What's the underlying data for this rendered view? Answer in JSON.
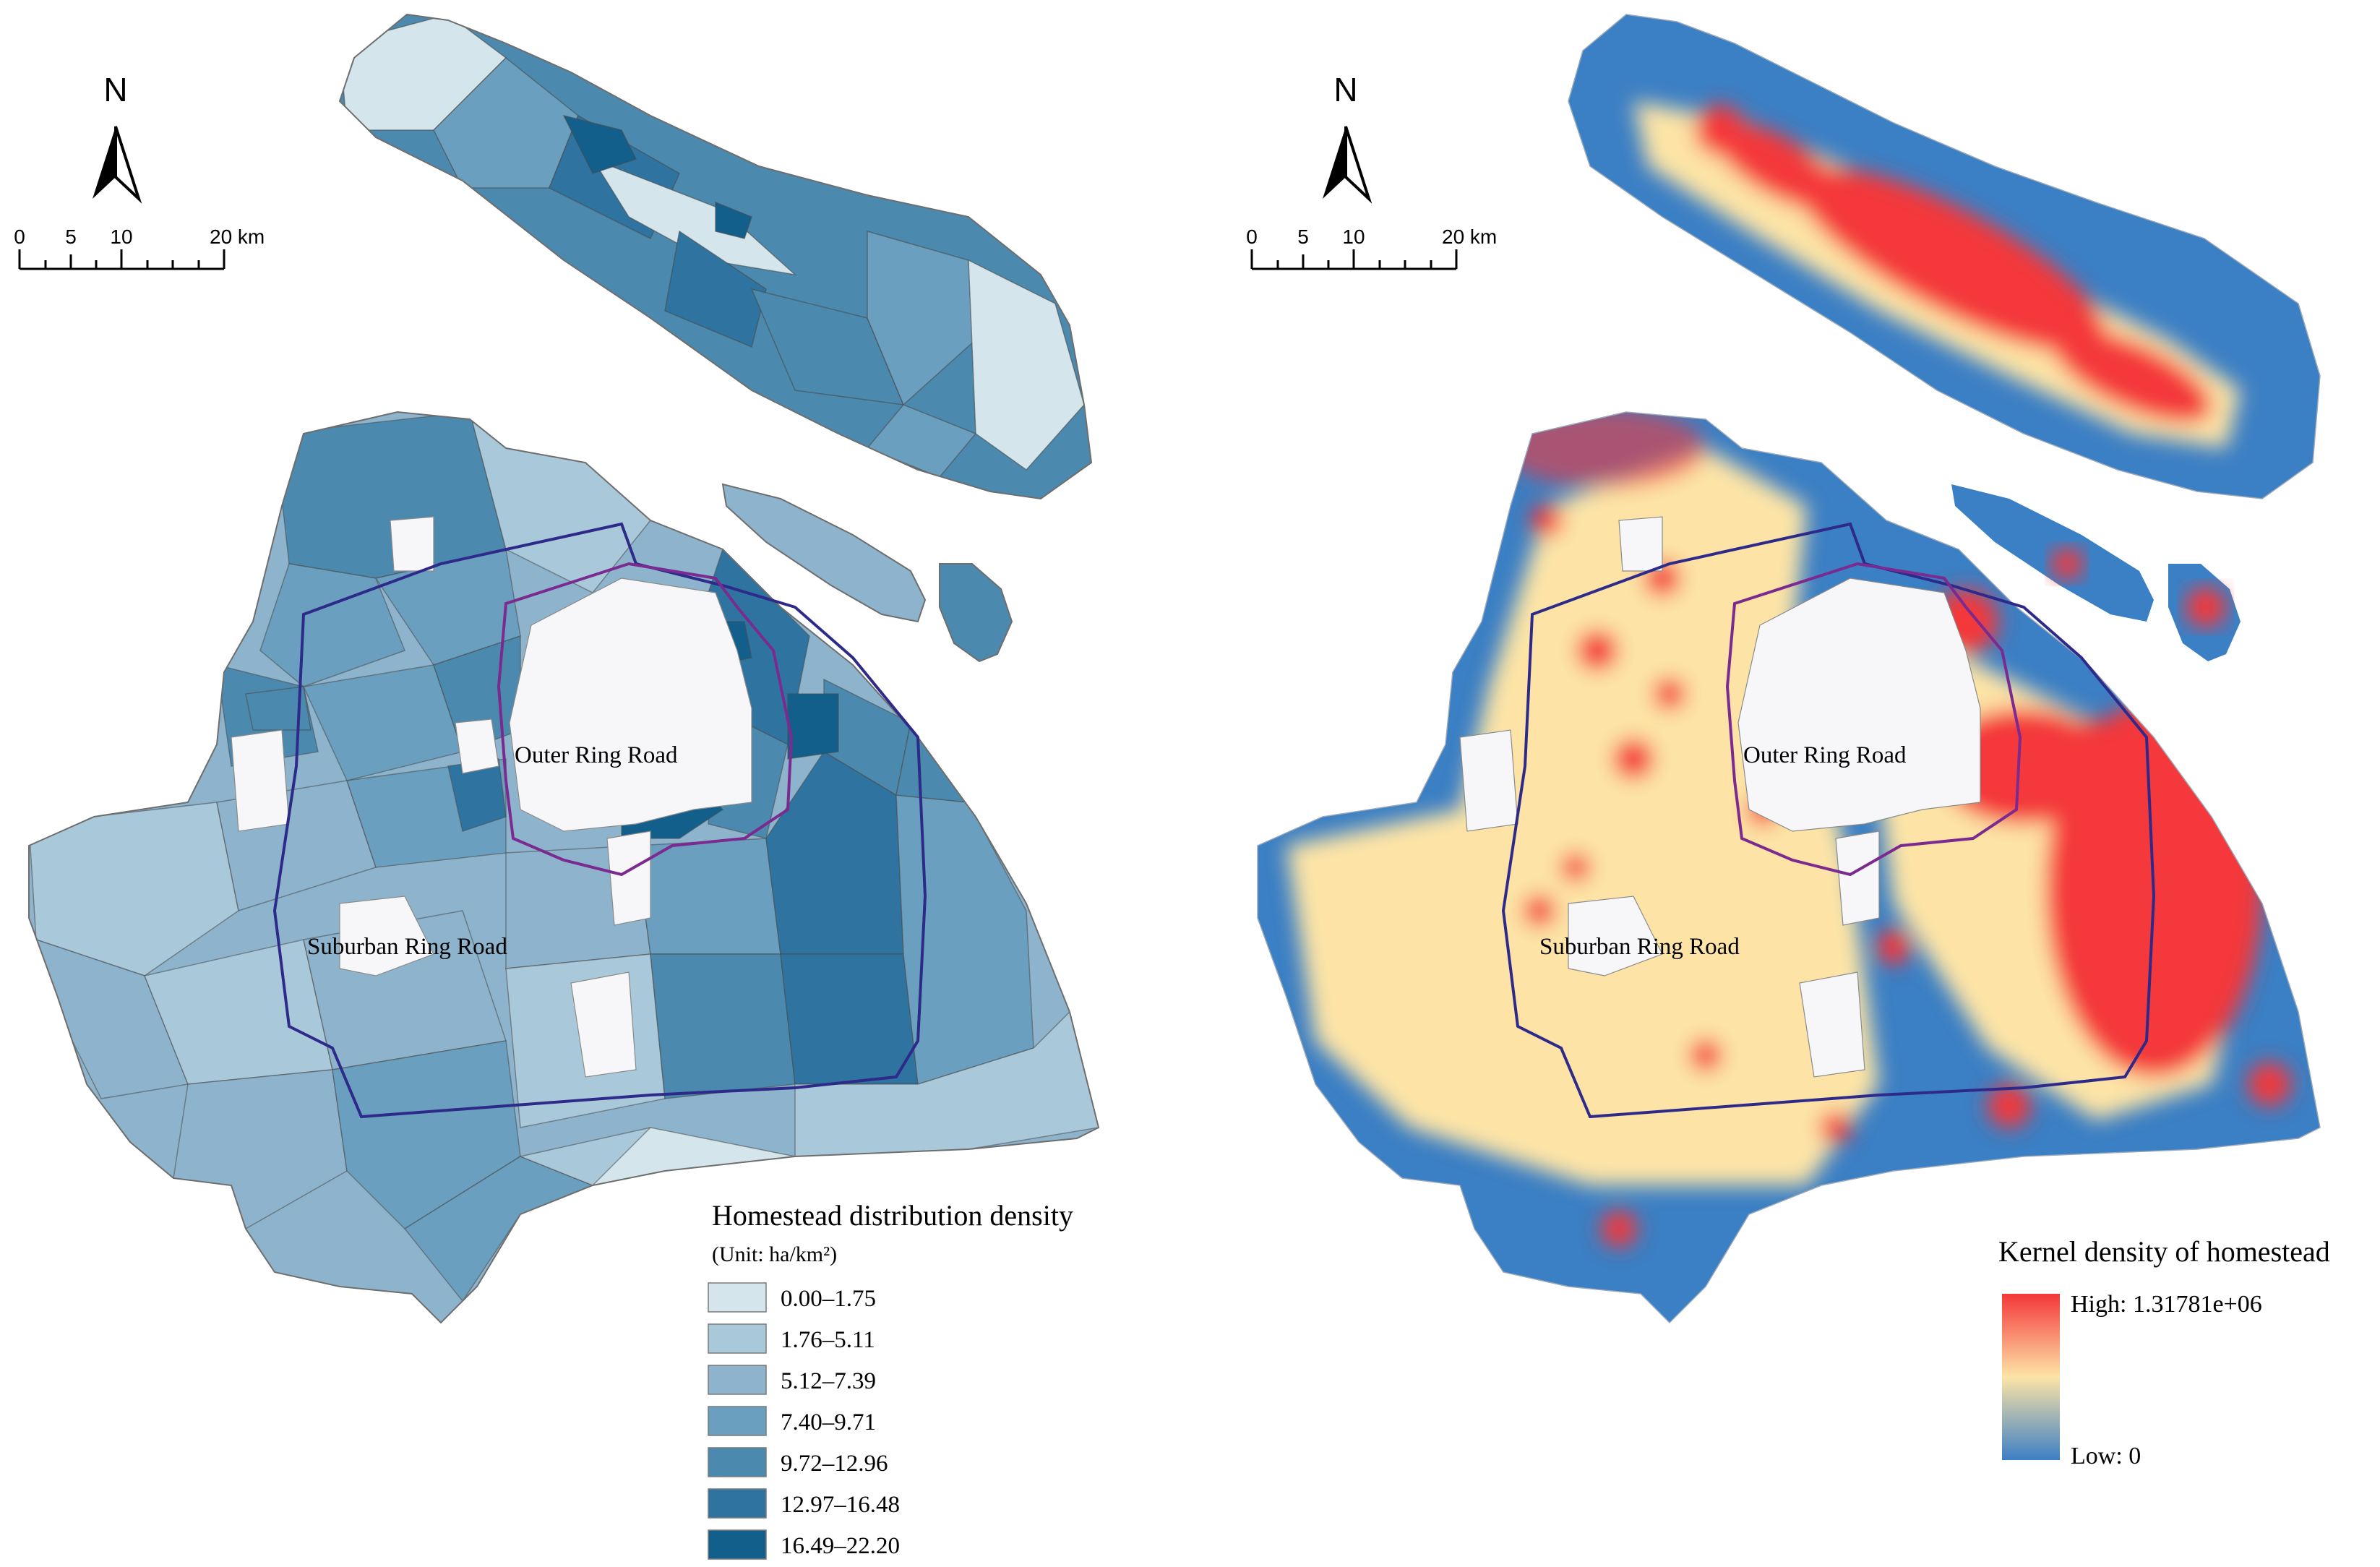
{
  "left_panel": {
    "north_label": "N",
    "scale_labels": [
      "0",
      "5",
      "10",
      "20 km"
    ],
    "ring_labels": {
      "outer": "Outer Ring Road",
      "suburban": "Suburban Ring Road"
    },
    "legend": {
      "title": "Homestead distribution density",
      "unit": "(Unit: ha/km²)",
      "classes": [
        {
          "label": "0.00–1.75",
          "color": "#d4e6ec"
        },
        {
          "label": "1.76–5.11",
          "color": "#a9c9da"
        },
        {
          "label": "5.12–7.39",
          "color": "#8db4cc"
        },
        {
          "label": "7.40–9.71",
          "color": "#6a9fbf"
        },
        {
          "label": "9.72–12.96",
          "color": "#4b89ae"
        },
        {
          "label": "12.97–16.48",
          "color": "#2f74a0"
        },
        {
          "label": "16.49–22.20",
          "color": "#125f8c"
        }
      ]
    }
  },
  "right_panel": {
    "north_label": "N",
    "scale_labels": [
      "0",
      "5",
      "10",
      "20 km"
    ],
    "ring_labels": {
      "outer": "Outer Ring Road",
      "suburban": "Suburban Ring Road"
    },
    "legend": {
      "title": "Kernel density of homestead",
      "high_label": "High: 1.31781e+06",
      "low_label": "Low: 0",
      "ramp": [
        "#f4373a",
        "#fde4a6",
        "#3b7fc4"
      ]
    }
  }
}
